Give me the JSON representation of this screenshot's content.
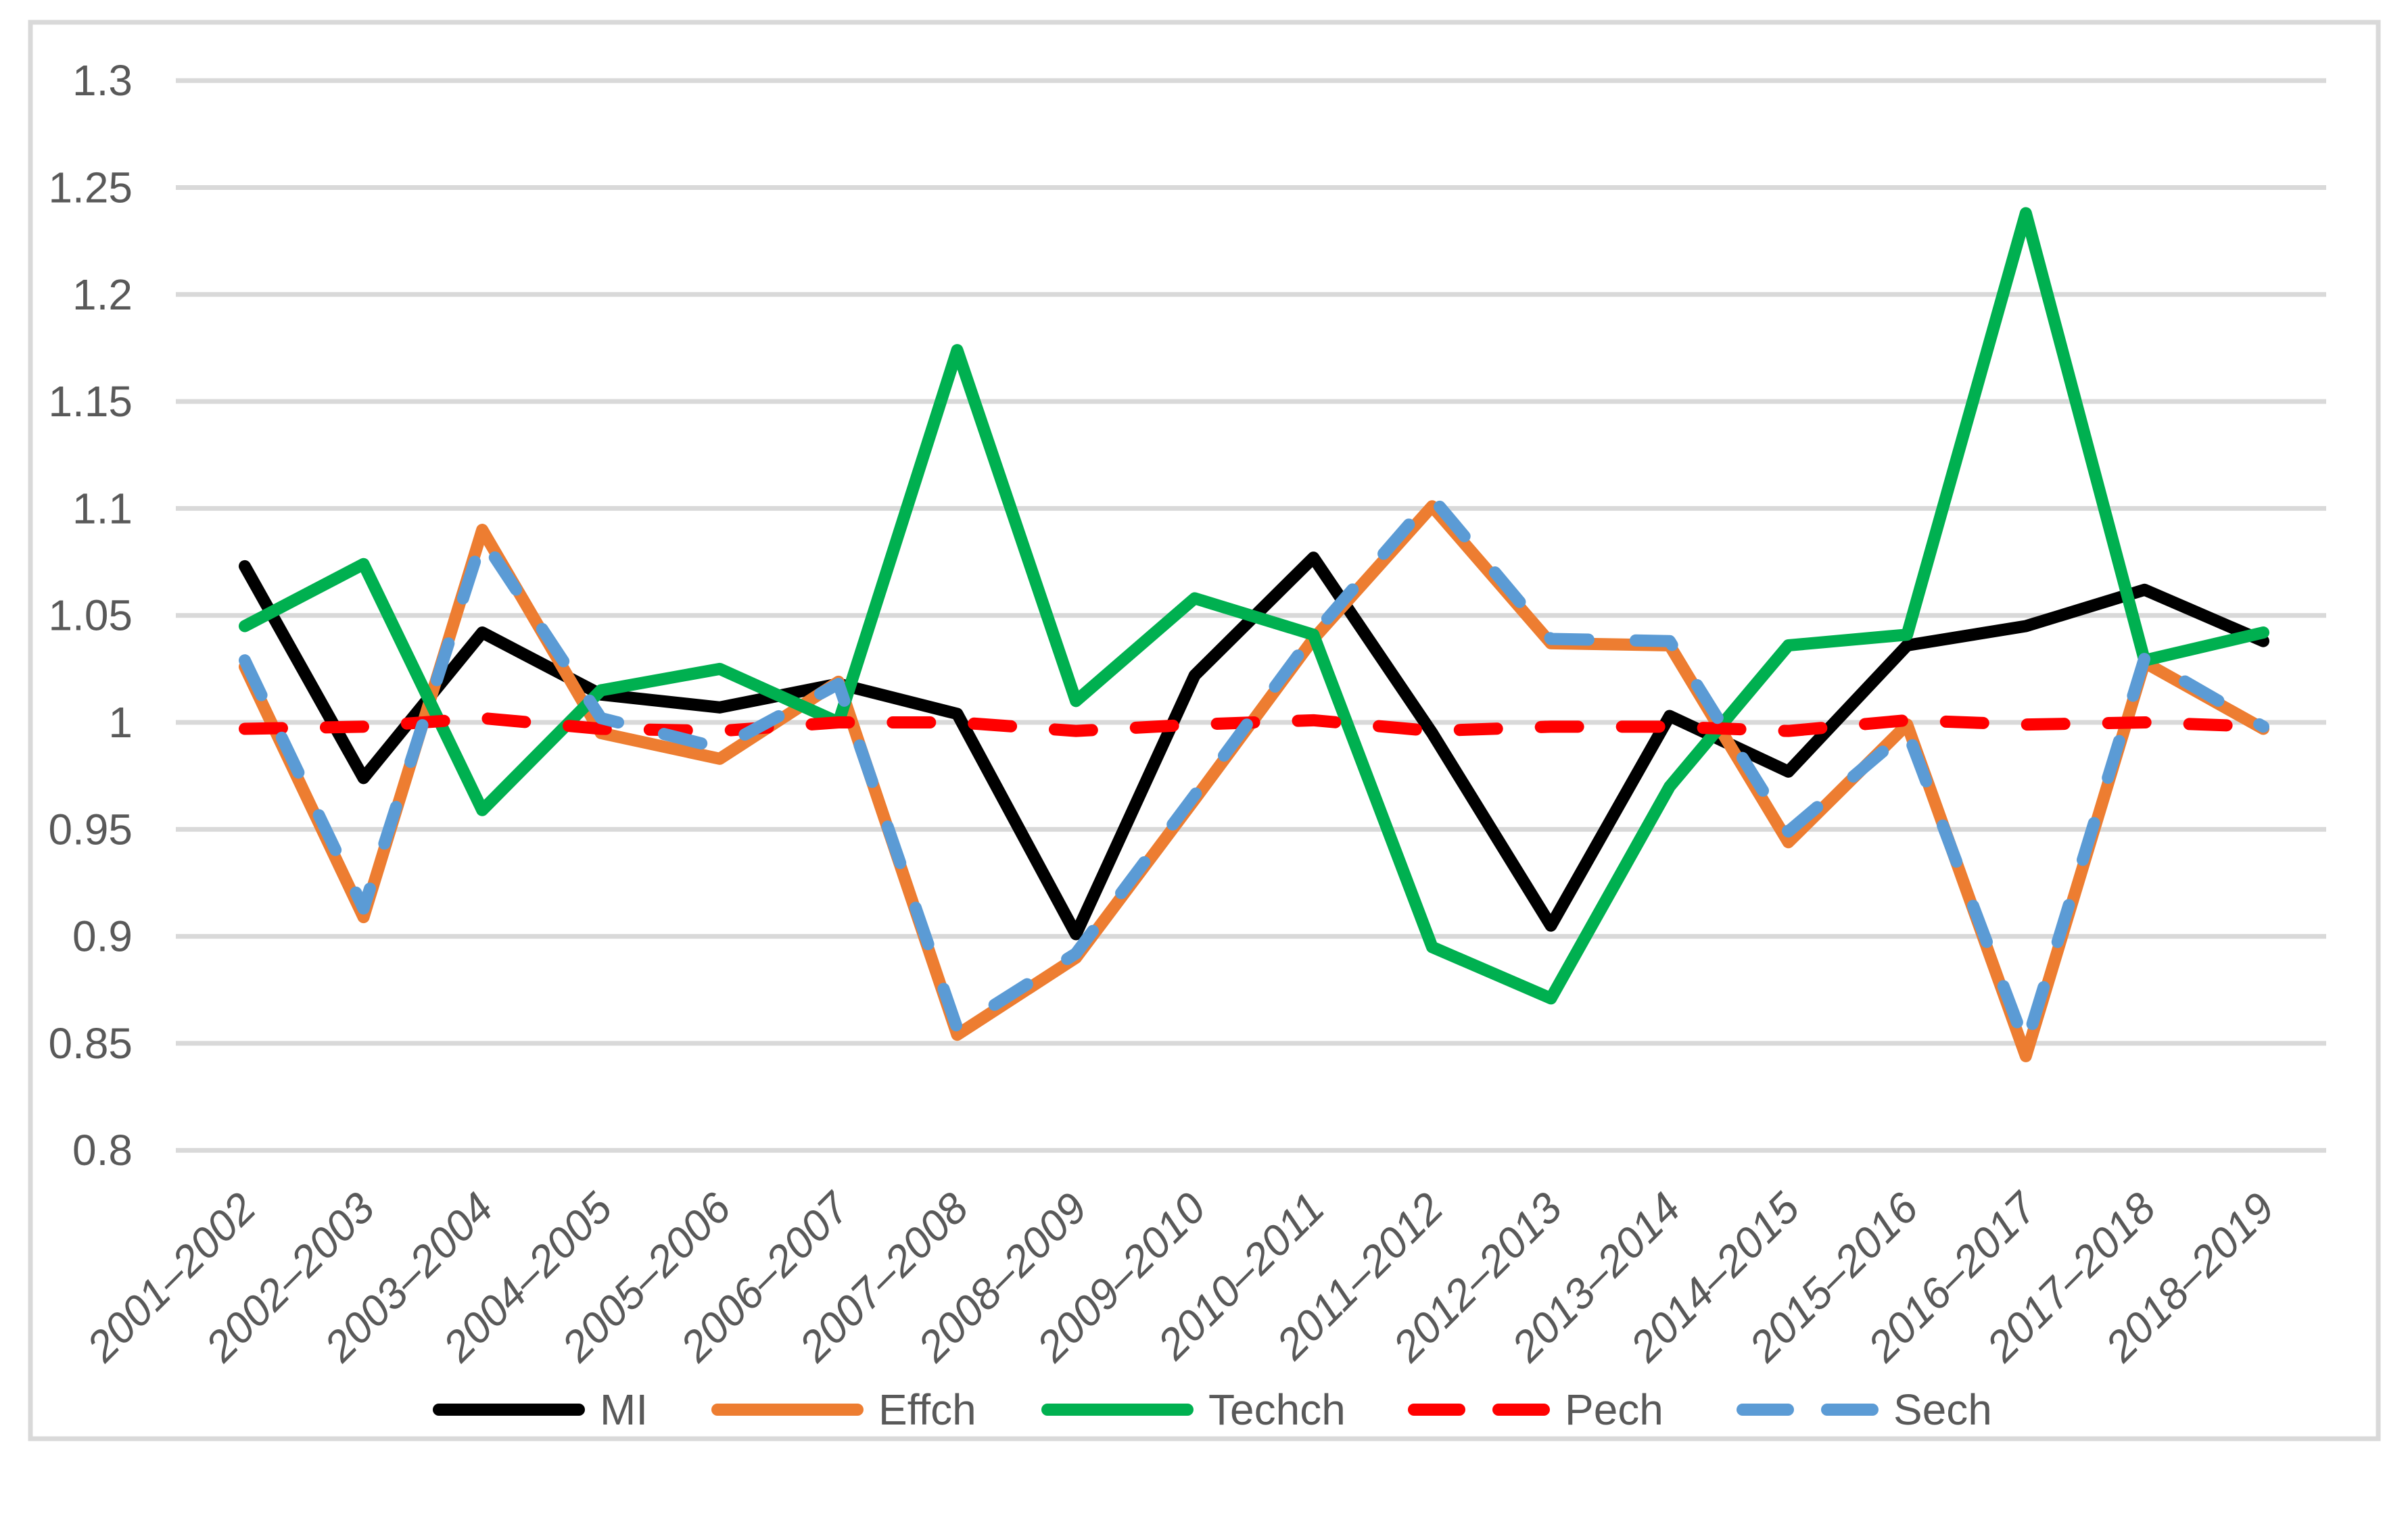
{
  "chart_data": {
    "type": "line",
    "title": "",
    "xlabel": "",
    "ylabel": "",
    "grid": true,
    "legend_position": "bottom",
    "categories": [
      "2001–2002",
      "2002–2003",
      "2003–2004",
      "2004–2005",
      "2005–2006",
      "2006–2007",
      "2007–2008",
      "2008–2009",
      "2009–2010",
      "2010–2011",
      "2011–2012",
      "2012–2013",
      "2013–2014",
      "2014–2015",
      "2015–2016",
      "2016–2017",
      "2017–2018",
      "2018–2019"
    ],
    "series": [
      {
        "name": "MI",
        "color": "#000000",
        "style": "solid",
        "values": [
          1.073,
          0.974,
          1.042,
          1.013,
          1.007,
          1.018,
          1.004,
          0.901,
          1.022,
          1.077,
          0.995,
          0.905,
          1.003,
          0.977,
          1.036,
          1.045,
          1.062,
          1.038
        ]
      },
      {
        "name": "Effch",
        "color": "#ED7D31",
        "style": "solid",
        "values": [
          1.026,
          0.909,
          1.09,
          0.995,
          0.983,
          1.019,
          0.854,
          0.89,
          0.964,
          1.039,
          1.101,
          1.037,
          1.036,
          0.944,
          0.999,
          0.844,
          1.028,
          0.997
        ]
      },
      {
        "name": "Techch",
        "color": "#00B050",
        "style": "solid",
        "values": [
          1.045,
          1.074,
          0.959,
          1.015,
          1.025,
          1.0,
          1.174,
          1.01,
          1.058,
          1.041,
          0.895,
          0.871,
          0.97,
          1.036,
          1.041,
          1.238,
          1.029,
          1.042
        ]
      },
      {
        "name": "Pech",
        "color": "#FF0000",
        "style": "dashed",
        "values": [
          0.997,
          0.998,
          1.002,
          0.997,
          0.996,
          1.0,
          1.0,
          0.996,
          0.999,
          1.001,
          0.996,
          0.998,
          0.998,
          0.996,
          1.001,
          0.999,
          1.0,
          0.998
        ]
      },
      {
        "name": "Sech",
        "color": "#5B9BD5",
        "style": "dashed",
        "values": [
          1.029,
          0.913,
          1.086,
          1.002,
          0.988,
          1.018,
          0.857,
          0.892,
          0.966,
          1.041,
          1.105,
          1.039,
          1.038,
          0.949,
          0.996,
          0.849,
          1.03,
          0.998
        ]
      }
    ],
    "y_axis": {
      "min": 0.8,
      "max": 1.3,
      "step": 0.05,
      "tick_labels": [
        "1.3",
        "1.25",
        "1.2",
        "1.15",
        "1.1",
        "1.05",
        "1",
        "0.95",
        "0.9",
        "0.85",
        "0.8"
      ]
    },
    "ylim": [
      0.8,
      1.3
    ]
  },
  "styles": {
    "background": "#FFFFFF",
    "frame_color": "#D9D9D9",
    "grid_color": "#D9D9D9",
    "tick_label_color": "#595959",
    "legend_label_color": "#595959"
  }
}
